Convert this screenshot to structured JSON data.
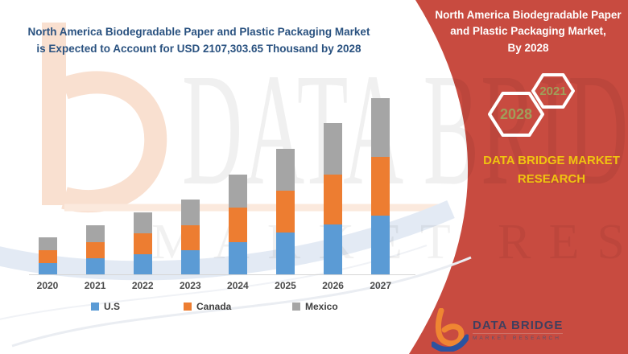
{
  "header": {
    "title_line1": "North America Biodegradable Paper and Plastic Packaging Market",
    "title_line2": "is Expected to Account for USD 2107,303.65 Thousand by 2028"
  },
  "panel": {
    "title_lines": [
      "North America Biodegradable Paper",
      "and Plastic Packaging Market,",
      "By 2028"
    ],
    "hex_large": "2028",
    "hex_small": "2021",
    "brand_text": "DATA BRIDGE MARKET RESEARCH",
    "colors": {
      "panel_red": "#c84b40",
      "hex_border": "#ffffff",
      "hex_text": "#a09e5a",
      "brand_yellow": "#f0c410"
    }
  },
  "logo": {
    "name": "DATA BRIDGE",
    "subtitle": "MARKET RESEARCH",
    "glyph_orange": "#ef8632",
    "glyph_blue": "#2b53a0"
  },
  "watermark": {
    "line1": "DATA BRIDGE",
    "line2": "MARKET RESEARCH"
  },
  "chart_data": {
    "type": "bar",
    "stacked": true,
    "title": "",
    "xlabel": "",
    "ylabel": "",
    "y_axis_visible": false,
    "legend_position": "bottom",
    "units": "relative height units (no value axis shown in figure)",
    "categories": [
      "2020",
      "2021",
      "2022",
      "2023",
      "2024",
      "2025",
      "2026",
      "2027"
    ],
    "series": [
      {
        "name": "U.S",
        "color": "#5B9BD5",
        "values": [
          14,
          20,
          25,
          30,
          40,
          52,
          62,
          73
        ]
      },
      {
        "name": "Canada",
        "color": "#ED7D31",
        "values": [
          16,
          20,
          26,
          31,
          43,
          52,
          62,
          73
        ]
      },
      {
        "name": "Mexico",
        "color": "#A5A5A5",
        "values": [
          16,
          21,
          26,
          32,
          41,
          52,
          64,
          73
        ]
      }
    ],
    "totals": [
      46,
      61,
      77,
      93,
      124,
      156,
      188,
      219
    ]
  }
}
